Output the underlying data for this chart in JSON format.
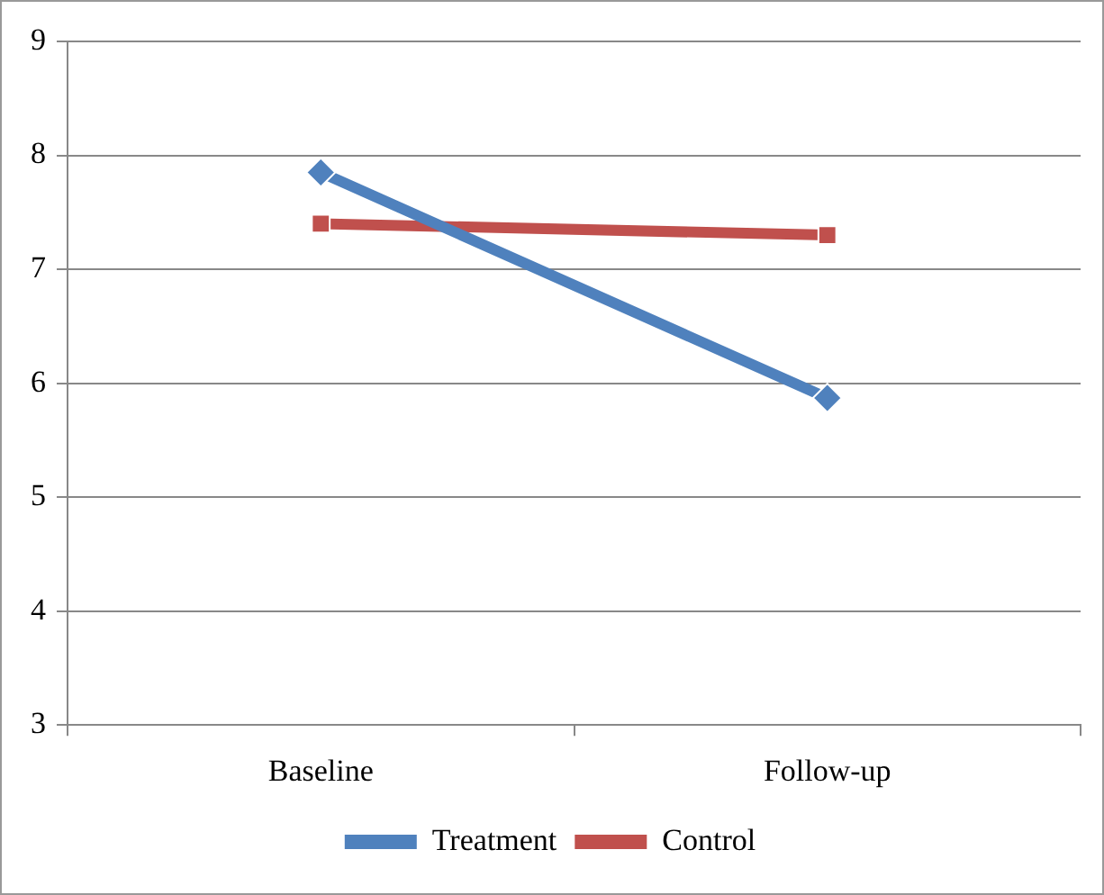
{
  "chart_data": {
    "type": "line",
    "categories": [
      "Baseline",
      "Follow-up"
    ],
    "series": [
      {
        "name": "Treatment",
        "color": "#4f81bd",
        "values": [
          7.85,
          5.87
        ],
        "marker": "diamond"
      },
      {
        "name": "Control",
        "color": "#c0504d",
        "values": [
          7.4,
          7.3
        ],
        "marker": "square"
      }
    ],
    "ylim": [
      3,
      9
    ],
    "yticks": [
      3,
      4,
      5,
      6,
      7,
      8,
      9
    ],
    "grid": "y",
    "legend": "bottom",
    "line_style": "solid"
  }
}
